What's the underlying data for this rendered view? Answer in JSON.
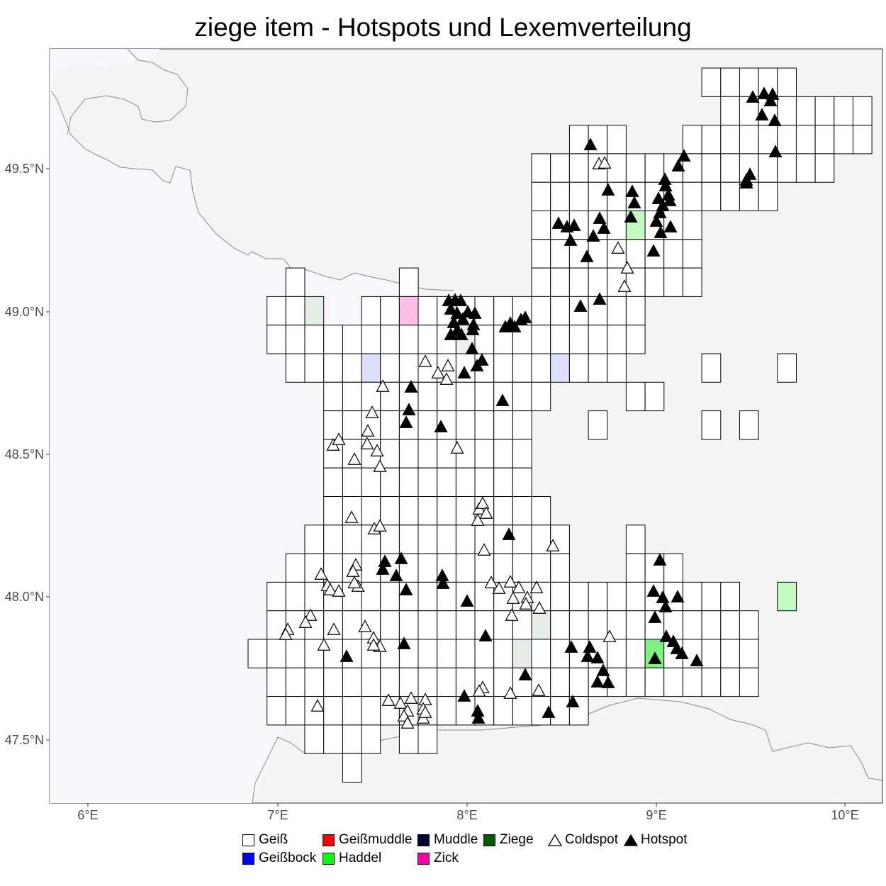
{
  "title": "ziege item - Hotspots und Lexemverteilung",
  "axes": {
    "x_ticks": [
      "6°E",
      "7°E",
      "8°E",
      "9°E",
      "10°E"
    ],
    "y_ticks": [
      "47.5°N",
      "48.0°N",
      "48.5°N",
      "49.0°N",
      "49.5°N"
    ]
  },
  "legend": {
    "items": [
      {
        "label": "Geiß",
        "color": "#ffffff",
        "kind": "fill"
      },
      {
        "label": "Geißmuddle",
        "color": "#ff0000",
        "kind": "fill"
      },
      {
        "label": "Muddle",
        "color": "#000033",
        "kind": "fill"
      },
      {
        "label": "Ziege",
        "color": "#005a00",
        "kind": "fill"
      },
      {
        "label": "Coldspot",
        "color": "#ffffff",
        "kind": "triangle"
      },
      {
        "label": "Hotspot",
        "color": "#000000",
        "kind": "triangle"
      },
      {
        "label": "Geißbock",
        "color": "#0000ff",
        "kind": "fill"
      },
      {
        "label": "Haddel",
        "color": "#00ff00",
        "kind": "fill"
      },
      {
        "label": "Zick",
        "color": "#ff00aa",
        "kind": "fill"
      }
    ]
  },
  "colors": {
    "panel": "#f4f4f4",
    "west_land": "#f8f8fc",
    "border_line": "#8a8a8a",
    "grid_line": "#000000"
  }
}
